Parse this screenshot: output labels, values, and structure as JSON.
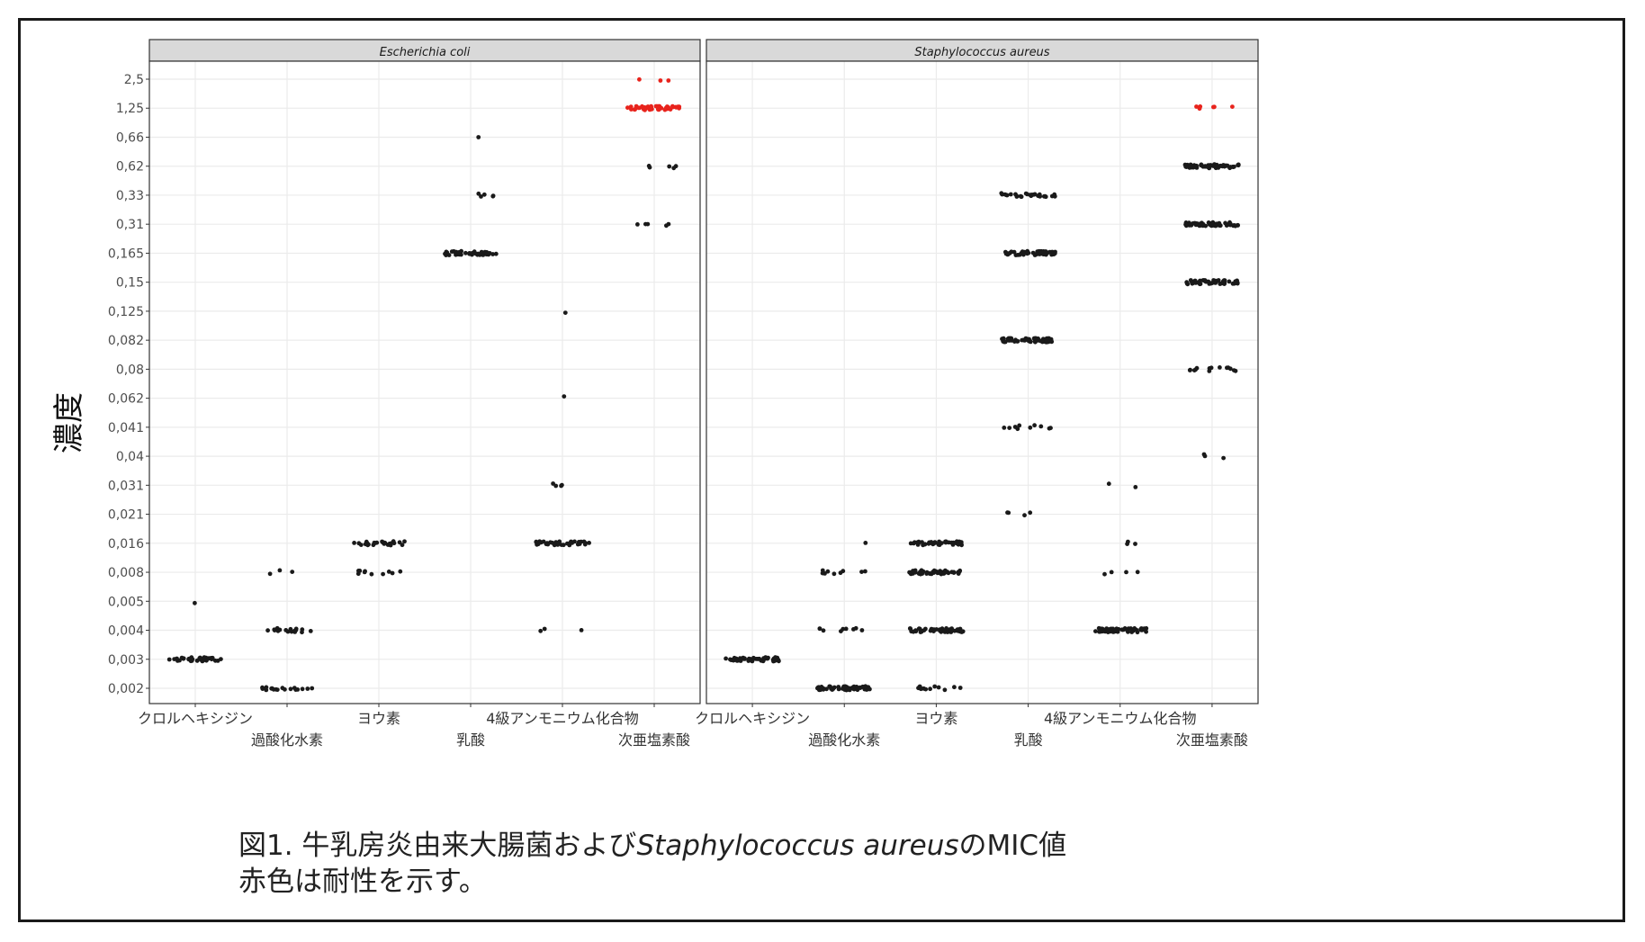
{
  "figure": {
    "caption_line1_prefix": "図1. 牛乳房炎由来大腸菌および",
    "caption_line1_species": "Staphylococcus aureus",
    "caption_line1_suffix": "のMIC値",
    "caption_line2": "赤色は耐性を示す。"
  },
  "chart_data": {
    "type": "scatter",
    "subtype": "faceted jitter strip plot",
    "ylabel": "濃度",
    "xlabel": "",
    "grid": true,
    "y_scale": "categorical (discrete concentration levels)",
    "y_levels": [
      "0,002",
      "0,003",
      "0,004",
      "0,005",
      "0,008",
      "0,016",
      "0,021",
      "0,031",
      "0,04",
      "0,041",
      "0,062",
      "0,08",
      "0,082",
      "0,125",
      "0,15",
      "0,165",
      "0,31",
      "0,33",
      "0,62",
      "0,66",
      "1,25",
      "2,5"
    ],
    "categories": [
      "クロルヘキシジン",
      "過酸化水素",
      "ヨウ素",
      "乳酸",
      "4級アンモニウム化合物",
      "次亜塩素酸"
    ],
    "legend": "none",
    "colors": {
      "susceptible": "#1a1a1a",
      "resistant": "#e8231c"
    },
    "facets": [
      {
        "name": "Escherichia coli",
        "points": [
          {
            "category": "クロルヘキシジン",
            "level": "0,003",
            "count": 40,
            "resistant": false
          },
          {
            "category": "クロルヘキシジン",
            "level": "0,005",
            "count": 1,
            "resistant": false
          },
          {
            "category": "過酸化水素",
            "level": "0,002",
            "count": 18,
            "resistant": false
          },
          {
            "category": "過酸化水素",
            "level": "0,004",
            "count": 18,
            "resistant": false
          },
          {
            "category": "過酸化水素",
            "level": "0,008",
            "count": 3,
            "resistant": false
          },
          {
            "category": "ヨウ素",
            "level": "0,008",
            "count": 10,
            "resistant": false
          },
          {
            "category": "ヨウ素",
            "level": "0,016",
            "count": 28,
            "resistant": false
          },
          {
            "category": "乳酸",
            "level": "0,165",
            "count": 42,
            "resistant": false
          },
          {
            "category": "乳酸",
            "level": "0,33",
            "count": 5,
            "resistant": false
          },
          {
            "category": "乳酸",
            "level": "0,66",
            "count": 1,
            "resistant": false
          },
          {
            "category": "4級アンモニウム化合物",
            "level": "0,004",
            "count": 3,
            "resistant": false
          },
          {
            "category": "4級アンモニウム化合物",
            "level": "0,016",
            "count": 35,
            "resistant": false
          },
          {
            "category": "4級アンモニウム化合物",
            "level": "0,031",
            "count": 4,
            "resistant": false
          },
          {
            "category": "4級アンモニウム化合物",
            "level": "0,062",
            "count": 1,
            "resistant": false
          },
          {
            "category": "4級アンモニウム化合物",
            "level": "0,125",
            "count": 1,
            "resistant": false
          },
          {
            "category": "次亜塩素酸",
            "level": "0,31",
            "count": 5,
            "resistant": false
          },
          {
            "category": "次亜塩素酸",
            "level": "0,62",
            "count": 5,
            "resistant": false
          },
          {
            "category": "次亜塩素酸",
            "level": "1,25",
            "count": 45,
            "resistant": true
          },
          {
            "category": "次亜塩素酸",
            "level": "2,5",
            "count": 3,
            "resistant": true
          }
        ]
      },
      {
        "name": "Staphylococcus aureus",
        "points": [
          {
            "category": "クロルヘキシジン",
            "level": "0,003",
            "count": 60,
            "resistant": false
          },
          {
            "category": "過酸化水素",
            "level": "0,002",
            "count": 60,
            "resistant": false
          },
          {
            "category": "過酸化水素",
            "level": "0,004",
            "count": 9,
            "resistant": false
          },
          {
            "category": "過酸化水素",
            "level": "0,008",
            "count": 9,
            "resistant": false
          },
          {
            "category": "過酸化水素",
            "level": "0,016",
            "count": 1,
            "resistant": false
          },
          {
            "category": "ヨウ素",
            "level": "0,002",
            "count": 12,
            "resistant": false
          },
          {
            "category": "ヨウ素",
            "level": "0,004",
            "count": 50,
            "resistant": false
          },
          {
            "category": "ヨウ素",
            "level": "0,008",
            "count": 60,
            "resistant": false
          },
          {
            "category": "ヨウ素",
            "level": "0,016",
            "count": 45,
            "resistant": false
          },
          {
            "category": "乳酸",
            "level": "0,021",
            "count": 4,
            "resistant": false
          },
          {
            "category": "乳酸",
            "level": "0,041",
            "count": 10,
            "resistant": false
          },
          {
            "category": "乳酸",
            "level": "0,082",
            "count": 60,
            "resistant": false
          },
          {
            "category": "乳酸",
            "level": "0,165",
            "count": 60,
            "resistant": false
          },
          {
            "category": "乳酸",
            "level": "0,33",
            "count": 30,
            "resistant": false
          },
          {
            "category": "4級アンモニウム化合物",
            "level": "0,004",
            "count": 60,
            "resistant": false
          },
          {
            "category": "4級アンモニウム化合物",
            "level": "0,008",
            "count": 4,
            "resistant": false
          },
          {
            "category": "4級アンモニウム化合物",
            "level": "0,016",
            "count": 3,
            "resistant": false
          },
          {
            "category": "4級アンモニウム化合物",
            "level": "0,031",
            "count": 2,
            "resistant": false
          },
          {
            "category": "次亜塩素酸",
            "level": "0,04",
            "count": 3,
            "resistant": false
          },
          {
            "category": "次亜塩素酸",
            "level": "0,08",
            "count": 14,
            "resistant": false
          },
          {
            "category": "次亜塩素酸",
            "level": "0,15",
            "count": 55,
            "resistant": false
          },
          {
            "category": "次亜塩素酸",
            "level": "0,31",
            "count": 60,
            "resistant": false
          },
          {
            "category": "次亜塩素酸",
            "level": "0,62",
            "count": 60,
            "resistant": false
          },
          {
            "category": "次亜塩素酸",
            "level": "1,25",
            "count": 6,
            "resistant": true
          }
        ]
      }
    ]
  }
}
